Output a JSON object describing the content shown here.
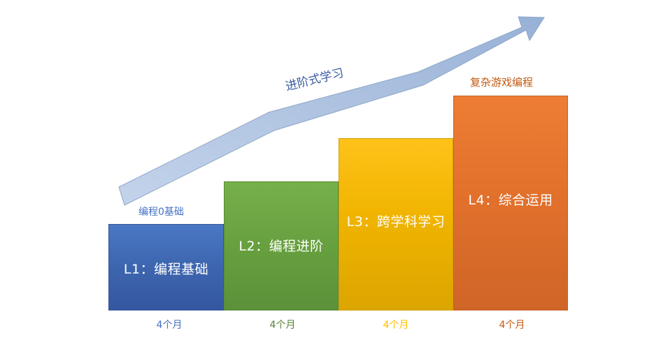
{
  "progression_label": "进阶式学习",
  "levels": [
    {
      "label": "L1：编程基础",
      "duration": "4个月",
      "note": "编程0基础",
      "color": "#4472c4"
    },
    {
      "label": "L2：编程进阶",
      "duration": "4个月",
      "color": "#70ad47"
    },
    {
      "label": "L3：跨学科学习",
      "duration": "4个月",
      "color": "#ffc000"
    },
    {
      "label": "L4：综合运用",
      "duration": "4个月",
      "note": "复杂游戏编程",
      "color": "#ed7d31"
    }
  ]
}
